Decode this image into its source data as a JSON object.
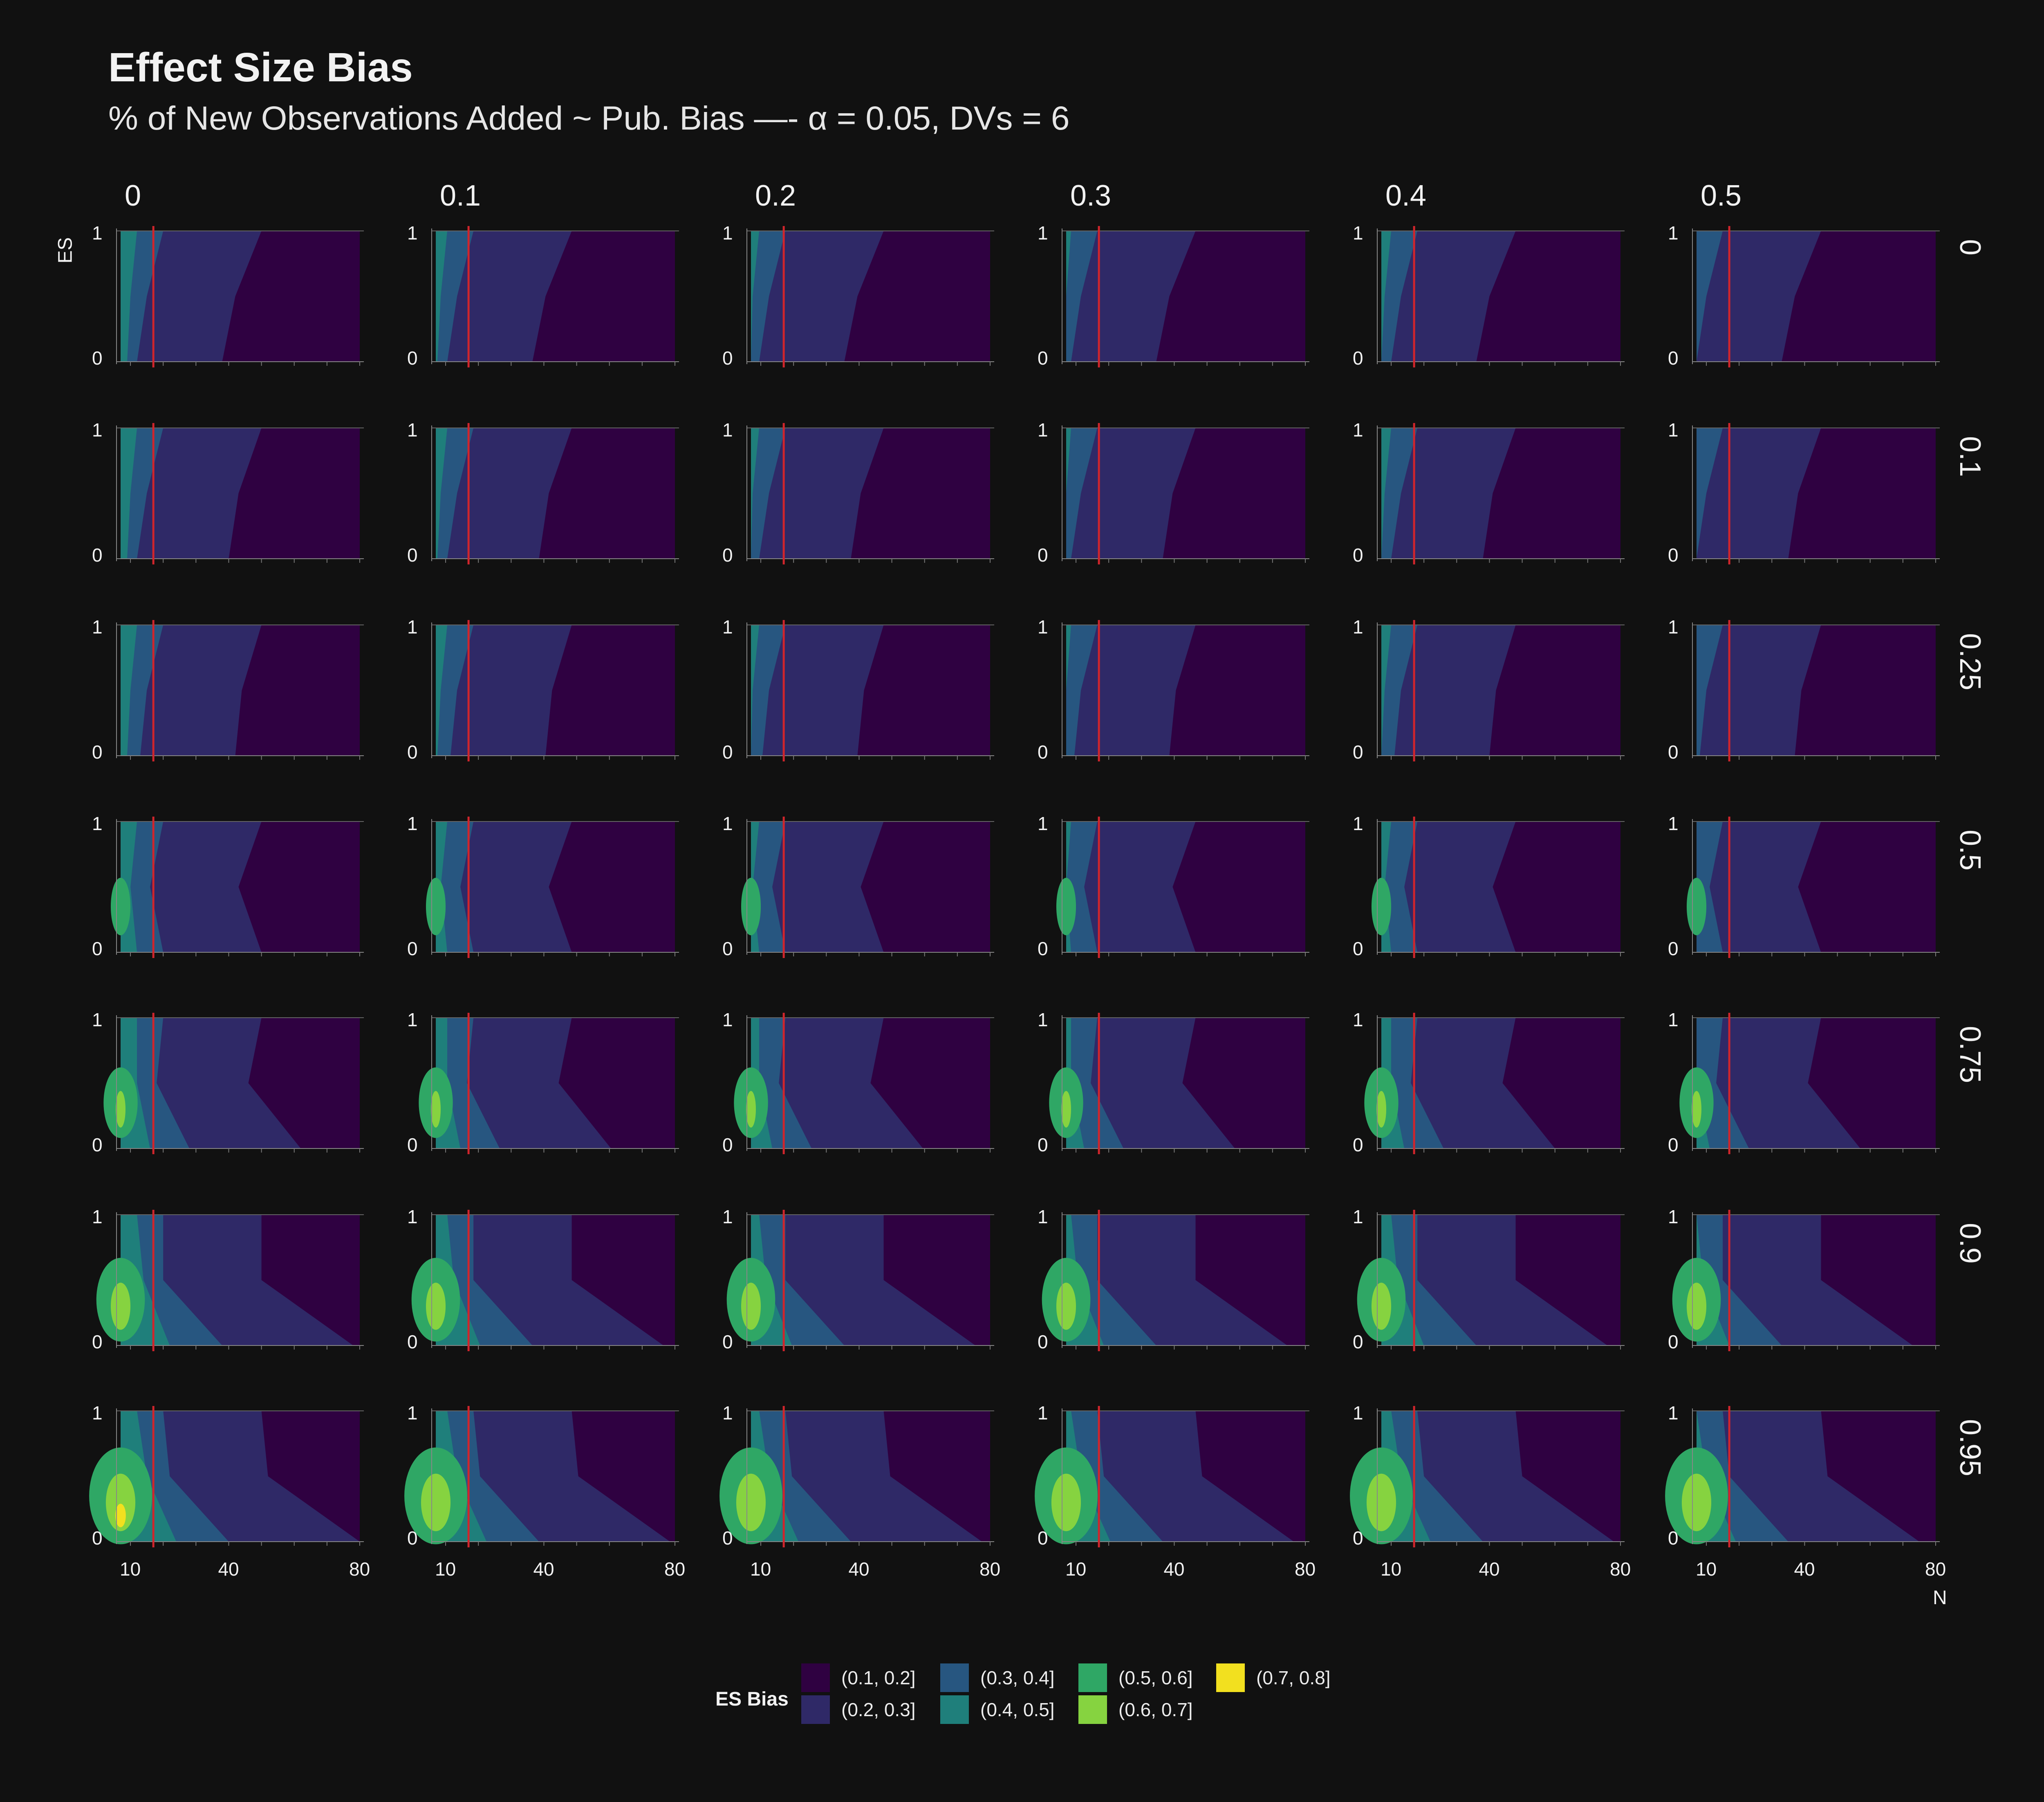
{
  "title": "Effect Size Bias",
  "subtitle": "% of New Observations Added ~ Pub. Bias —- α = 0.05, DVs = 6",
  "chart_data": {
    "type": "heatmap",
    "subtype": "faceted filled contour",
    "title": "Effect Size Bias",
    "subtitle": "% of New Observations Added ~ Pub. Bias —- α = 0.05, DVs = 6",
    "xlabel": "N",
    "ylabel": "ES",
    "x_ticks": [
      "10",
      "40",
      "80"
    ],
    "y_ticks": [
      "0",
      "1"
    ],
    "xlim": [
      7,
      80
    ],
    "ylim": [
      0,
      1
    ],
    "reference_line_x": 17,
    "reference_line_color": "#d0252c",
    "facet_columns": [
      "0",
      "0.1",
      "0.2",
      "0.3",
      "0.4",
      "0.5"
    ],
    "facet_rows": [
      "0",
      "0.1",
      "0.25",
      "0.5",
      "0.75",
      "0.9",
      "0.95"
    ],
    "legend": {
      "title": "ES Bias",
      "placement": "bottom",
      "levels": [
        {
          "label": "(0.1, 0.2]",
          "color": "#2f0141"
        },
        {
          "label": "(0.2, 0.3]",
          "color": "#2f2967"
        },
        {
          "label": "(0.3, 0.4]",
          "color": "#275680"
        },
        {
          "label": "(0.4, 0.5]",
          "color": "#1f7f7b"
        },
        {
          "label": "(0.5, 0.6]",
          "color": "#2fa765"
        },
        {
          "label": "(0.6, 0.7]",
          "color": "#86d340"
        },
        {
          "label": "(0.7, 0.8]",
          "color": "#f2e01f"
        }
      ]
    },
    "contour_boundaries_note": "x positions (in N units) of level boundaries at ES = 0, 0.5, 1 per row",
    "row_profiles": {
      "0": {
        "b23": [
          38,
          42,
          50
        ],
        "b34": [
          12,
          15,
          20
        ],
        "b45": [
          9,
          10,
          12
        ]
      },
      "0.1": {
        "b23": [
          40,
          43,
          50
        ],
        "b34": [
          12,
          15,
          20
        ],
        "b45": [
          9,
          10,
          12
        ]
      },
      "0.25": {
        "b23": [
          42,
          44,
          50
        ],
        "b34": [
          13,
          15,
          20
        ],
        "b45": [
          9,
          10,
          12
        ]
      },
      "0.5": {
        "b23": [
          50,
          43,
          50
        ],
        "b34": [
          20,
          16,
          20
        ],
        "b45": [
          12,
          10,
          12
        ]
      },
      "0.75": {
        "b23": [
          62,
          46,
          50
        ],
        "b34": [
          28,
          18,
          20
        ],
        "b45": [
          16,
          12,
          12
        ]
      },
      "0.9": {
        "b23": [
          78,
          50,
          50
        ],
        "b34": [
          38,
          20,
          20
        ],
        "b45": [
          22,
          14,
          12
        ]
      },
      "0.95": {
        "b23": [
          80,
          52,
          50
        ],
        "b34": [
          40,
          22,
          20
        ],
        "b45": [
          24,
          15,
          12
        ]
      }
    }
  }
}
